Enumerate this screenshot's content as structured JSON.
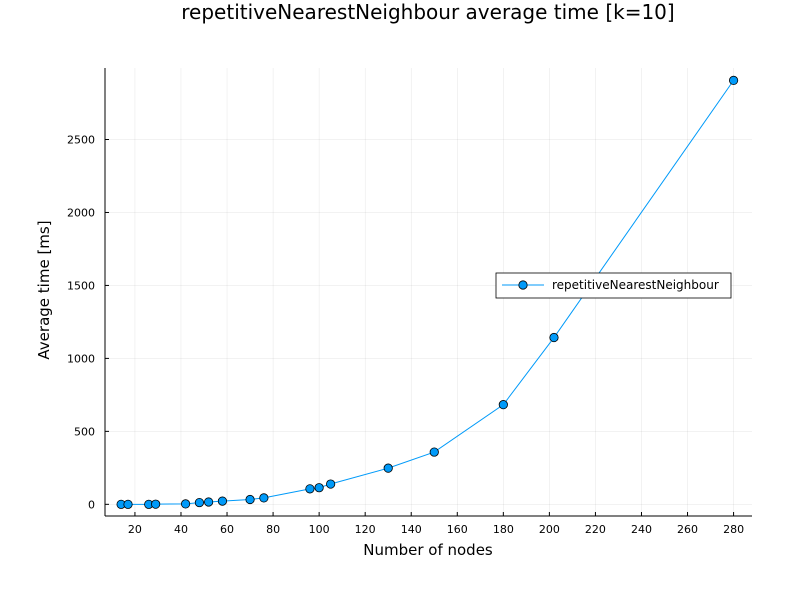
{
  "chart_data": {
    "type": "scatter",
    "title": "repetitiveNearestNeighbour average time [k=10]",
    "xlabel": "Number of nodes",
    "ylabel": "Average time [ms]",
    "xlim": [
      7,
      288
    ],
    "ylim": [
      -80,
      2990
    ],
    "x_ticks": [
      20,
      40,
      60,
      80,
      100,
      120,
      140,
      160,
      180,
      200,
      220,
      240,
      260,
      280
    ],
    "y_ticks": [
      0,
      500,
      1000,
      1500,
      2000,
      2500
    ],
    "grid": true,
    "legend_position": "right",
    "series": [
      {
        "name": "repetitiveNearestNeighbour",
        "color": "#009af9",
        "marker": "circle",
        "line": true,
        "x": [
          14,
          17,
          26,
          29,
          42,
          48,
          52,
          58,
          70,
          76,
          96,
          100,
          105,
          130,
          150,
          180,
          202,
          280
        ],
        "y": [
          0,
          0,
          0,
          1,
          3,
          12,
          16,
          22,
          33,
          44,
          106,
          114,
          139,
          248,
          358,
          683,
          1143,
          2905
        ]
      }
    ]
  }
}
